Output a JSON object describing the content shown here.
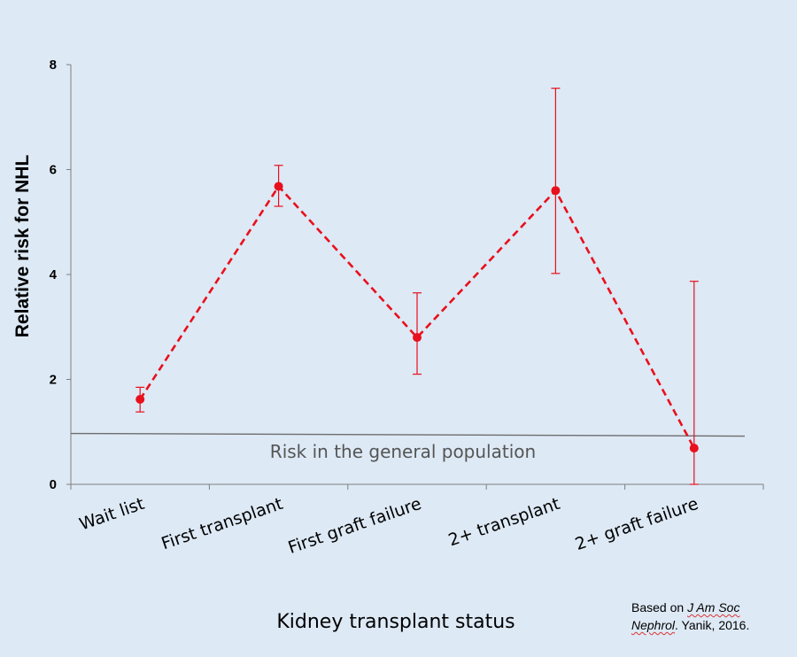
{
  "chart_data": {
    "type": "line",
    "categories": [
      "Wait list",
      "First transplant",
      "First graft failure",
      "2+ transplant",
      "2+ graft failure"
    ],
    "series": [
      {
        "name": "Relative risk for NHL",
        "values": [
          1.62,
          5.68,
          2.8,
          5.6,
          0.69
        ],
        "ci_lower": [
          1.38,
          5.3,
          2.1,
          4.02,
          0.0
        ],
        "ci_upper": [
          1.85,
          6.08,
          3.65,
          7.55,
          3.87
        ]
      }
    ],
    "reference_line": {
      "value": 0.97,
      "label": "Risk in the general population"
    },
    "ylabel": "Relative risk for NHL",
    "xlabel": "Kidney transplant status",
    "ylim": [
      0,
      8
    ],
    "yticks": [
      "0",
      "2",
      "4",
      "6",
      "8"
    ],
    "colors": {
      "series": "#e8101c",
      "reference": "#6d6d6d",
      "axis": "#7f7f7f",
      "background": "#dde9f5"
    },
    "source": {
      "prefix": "Based on",
      "journal_line1": "J Am Soc",
      "journal_line2": "Nephrol",
      "suffix": ". Yanik, 2016."
    }
  }
}
